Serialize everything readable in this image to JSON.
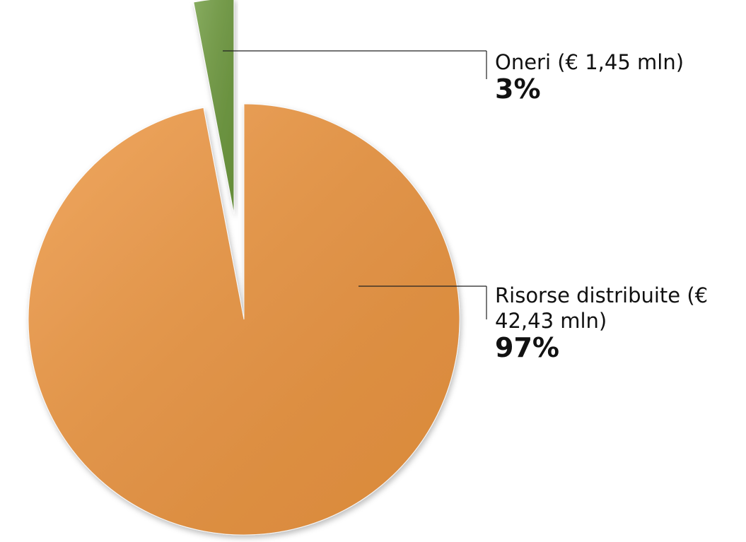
{
  "chart_data": {
    "type": "pie",
    "categories": [
      "Risorse distribuite (€ 42,43 mln)",
      "Oneri (€ 1,45 mln)"
    ],
    "values": [
      97,
      3
    ],
    "value_labels": [
      "97%",
      "3%"
    ],
    "colors": [
      "#ee9640",
      "#6e9a3e"
    ]
  }
}
